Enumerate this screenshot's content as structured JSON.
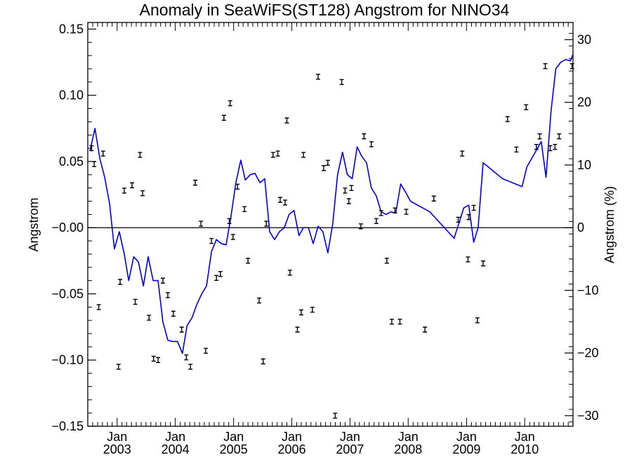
{
  "chart_data": {
    "type": "line",
    "title": "Anomaly in SeaWiFS(ST128) Angstrom for NINO34",
    "ylabel": "Angstrom",
    "ylabel_right": "Angstrom (%)",
    "ylim": [
      -0.15,
      0.155
    ],
    "y_ticks": [
      -0.15,
      -0.1,
      -0.05,
      0.0,
      0.05,
      0.1,
      0.15
    ],
    "y_tick_labels": [
      "−0.15",
      "−0.10",
      "−0.05",
      "−0.00",
      "0.05",
      "0.10",
      "0.15"
    ],
    "y2_ticks": [
      -30,
      -20,
      -10,
      0,
      10,
      20,
      30
    ],
    "y2_tick_labels": [
      "−30",
      "−20",
      "−10",
      "0",
      "10",
      "20",
      "30"
    ],
    "xlim": [
      "2002-07-01",
      "2010-10-31"
    ],
    "x_ticks": [
      {
        "date": "2003-01-01",
        "month": "Jan",
        "year": "2003"
      },
      {
        "date": "2004-01-01",
        "month": "Jan",
        "year": "2004"
      },
      {
        "date": "2005-01-01",
        "month": "Jan",
        "year": "2005"
      },
      {
        "date": "2006-01-01",
        "month": "Jan",
        "year": "2006"
      },
      {
        "date": "2007-01-01",
        "month": "Jan",
        "year": "2007"
      },
      {
        "date": "2008-01-01",
        "month": "Jan",
        "year": "2008"
      },
      {
        "date": "2009-01-01",
        "month": "Jan",
        "year": "2009"
      },
      {
        "date": "2010-01-01",
        "month": "Jan",
        "year": "2010"
      }
    ],
    "zero_line": 0.0,
    "colors": {
      "line": "#0000dd",
      "points": "#000000",
      "axes": "#000000"
    },
    "series": [
      {
        "kind": "line",
        "x": [
          "2002-07-15",
          "2002-08-15",
          "2002-09-15",
          "2002-10-15",
          "2002-11-15",
          "2002-12-15",
          "2003-01-15",
          "2003-02-15",
          "2003-03-15",
          "2003-04-15",
          "2003-05-15",
          "2003-06-15",
          "2003-07-15",
          "2003-08-15",
          "2003-09-15",
          "2003-10-15",
          "2003-11-15",
          "2003-12-15",
          "2004-01-15",
          "2004-02-15",
          "2004-03-15",
          "2004-04-15",
          "2004-05-15",
          "2004-06-15",
          "2004-07-15",
          "2004-08-15",
          "2004-09-15",
          "2004-10-15",
          "2004-11-15",
          "2004-12-15",
          "2005-01-15",
          "2005-02-15",
          "2005-03-15",
          "2005-04-15",
          "2005-05-15",
          "2005-06-15",
          "2005-07-15",
          "2005-08-15",
          "2005-09-15",
          "2005-10-15",
          "2005-11-15",
          "2005-12-15",
          "2006-01-15",
          "2006-02-15",
          "2006-03-15",
          "2006-04-15",
          "2006-05-15",
          "2006-06-15",
          "2006-07-15",
          "2006-08-15",
          "2006-09-15",
          "2006-10-15",
          "2006-11-15",
          "2006-12-15",
          "2007-01-15",
          "2007-02-15",
          "2007-03-15",
          "2007-04-15",
          "2007-05-15",
          "2007-06-15",
          "2007-07-15",
          "2007-08-15",
          "2007-09-15",
          "2007-10-15",
          "2007-11-15",
          "2007-12-15",
          "2008-01-15",
          "2008-05-15",
          "2008-10-15",
          "2008-12-15",
          "2009-01-15",
          "2009-02-15",
          "2009-03-15",
          "2009-04-15",
          "2009-08-15",
          "2009-12-15",
          "2010-01-15",
          "2010-04-15",
          "2010-05-15",
          "2010-06-15",
          "2010-07-15",
          "2010-08-15",
          "2010-09-15",
          "2010-10-15",
          "2010-10-31"
        ],
        "y": [
          0.058,
          0.075,
          0.052,
          0.038,
          0.018,
          -0.016,
          -0.003,
          -0.02,
          -0.04,
          -0.022,
          -0.026,
          -0.044,
          -0.022,
          -0.04,
          -0.04,
          -0.071,
          -0.085,
          -0.086,
          -0.086,
          -0.095,
          -0.074,
          -0.068,
          -0.058,
          -0.05,
          -0.044,
          -0.018,
          -0.009,
          -0.012,
          -0.013,
          0.008,
          0.034,
          0.051,
          0.036,
          0.04,
          0.041,
          0.034,
          0.037,
          -0.003,
          -0.009,
          -0.003,
          0.0,
          0.01,
          0.013,
          -0.006,
          0.0,
          0.0,
          -0.012,
          0.001,
          -0.003,
          -0.019,
          0.003,
          0.04,
          0.057,
          0.04,
          0.037,
          0.061,
          0.054,
          0.049,
          0.03,
          0.024,
          0.012,
          0.01,
          0.012,
          0.011,
          0.033,
          0.027,
          0.02,
          0.012,
          -0.008,
          0.015,
          0.017,
          -0.011,
          0.0,
          0.049,
          0.037,
          0.031,
          0.046,
          0.065,
          0.038,
          0.088,
          0.12,
          0.125,
          0.127,
          0.126,
          0.131
        ]
      },
      {
        "kind": "points",
        "x": [
          "2002-07-25",
          "2002-08-10",
          "2002-09-08",
          "2002-10-05",
          "2003-01-10",
          "2003-01-20",
          "2003-02-15",
          "2003-04-05",
          "2003-04-25",
          "2003-05-25",
          "2003-06-10",
          "2003-07-20",
          "2003-08-18",
          "2003-09-15",
          "2003-10-15",
          "2003-11-15",
          "2003-12-20",
          "2004-02-10",
          "2004-03-10",
          "2004-04-05",
          "2004-05-05",
          "2004-06-10",
          "2004-07-10",
          "2004-08-15",
          "2004-09-15",
          "2004-10-10",
          "2004-11-01",
          "2004-12-05",
          "2004-12-10",
          "2004-12-28",
          "2005-01-25",
          "2005-03-10",
          "2005-04-01",
          "2005-06-10",
          "2005-07-05",
          "2005-07-25",
          "2005-09-05",
          "2005-10-05",
          "2005-10-20",
          "2005-11-20",
          "2005-12-01",
          "2005-12-20",
          "2006-02-05",
          "2006-03-01",
          "2006-03-15",
          "2006-05-10",
          "2006-06-15",
          "2006-07-20",
          "2006-08-15",
          "2006-09-30",
          "2006-11-10",
          "2006-12-01",
          "2006-12-25",
          "2007-01-10",
          "2007-03-10",
          "2007-03-30",
          "2007-05-15",
          "2007-06-15",
          "2007-07-15",
          "2007-08-20",
          "2007-09-20",
          "2007-10-10",
          "2007-11-10",
          "2007-12-20",
          "2008-04-15",
          "2008-06-10",
          "2008-11-10",
          "2008-12-05",
          "2009-01-10",
          "2009-01-15",
          "2009-02-15",
          "2009-03-10",
          "2009-04-15",
          "2009-09-15",
          "2009-11-10",
          "2010-01-10",
          "2010-03-15",
          "2010-04-05",
          "2010-05-10",
          "2010-06-10",
          "2010-07-10",
          "2010-08-05",
          "2010-10-25"
        ],
        "y": [
          0.06,
          0.048,
          -0.06,
          0.056,
          -0.105,
          -0.041,
          0.028,
          0.032,
          -0.056,
          0.055,
          0.026,
          -0.068,
          -0.099,
          -0.1,
          -0.04,
          -0.051,
          -0.065,
          -0.077,
          -0.098,
          -0.105,
          0.034,
          0.003,
          -0.093,
          -0.01,
          -0.038,
          -0.035,
          0.083,
          0.005,
          0.094,
          -0.007,
          0.031,
          0.014,
          -0.025,
          -0.055,
          -0.101,
          0.003,
          0.055,
          0.056,
          0.021,
          0.019,
          0.081,
          -0.034,
          -0.077,
          -0.064,
          0.055,
          -0.062,
          0.114,
          0.045,
          0.049,
          -0.142,
          0.11,
          0.028,
          0.02,
          0.03,
          0.001,
          0.069,
          0.063,
          0.005,
          0.011,
          -0.025,
          -0.071,
          0.013,
          -0.071,
          0.012,
          -0.077,
          0.022,
          0.006,
          0.056,
          -0.024,
          0.008,
          0.015,
          -0.07,
          -0.027,
          0.082,
          0.059,
          0.091,
          0.061,
          0.069,
          0.122,
          0.06,
          0.061,
          0.069,
          0.122
        ]
      }
    ]
  }
}
